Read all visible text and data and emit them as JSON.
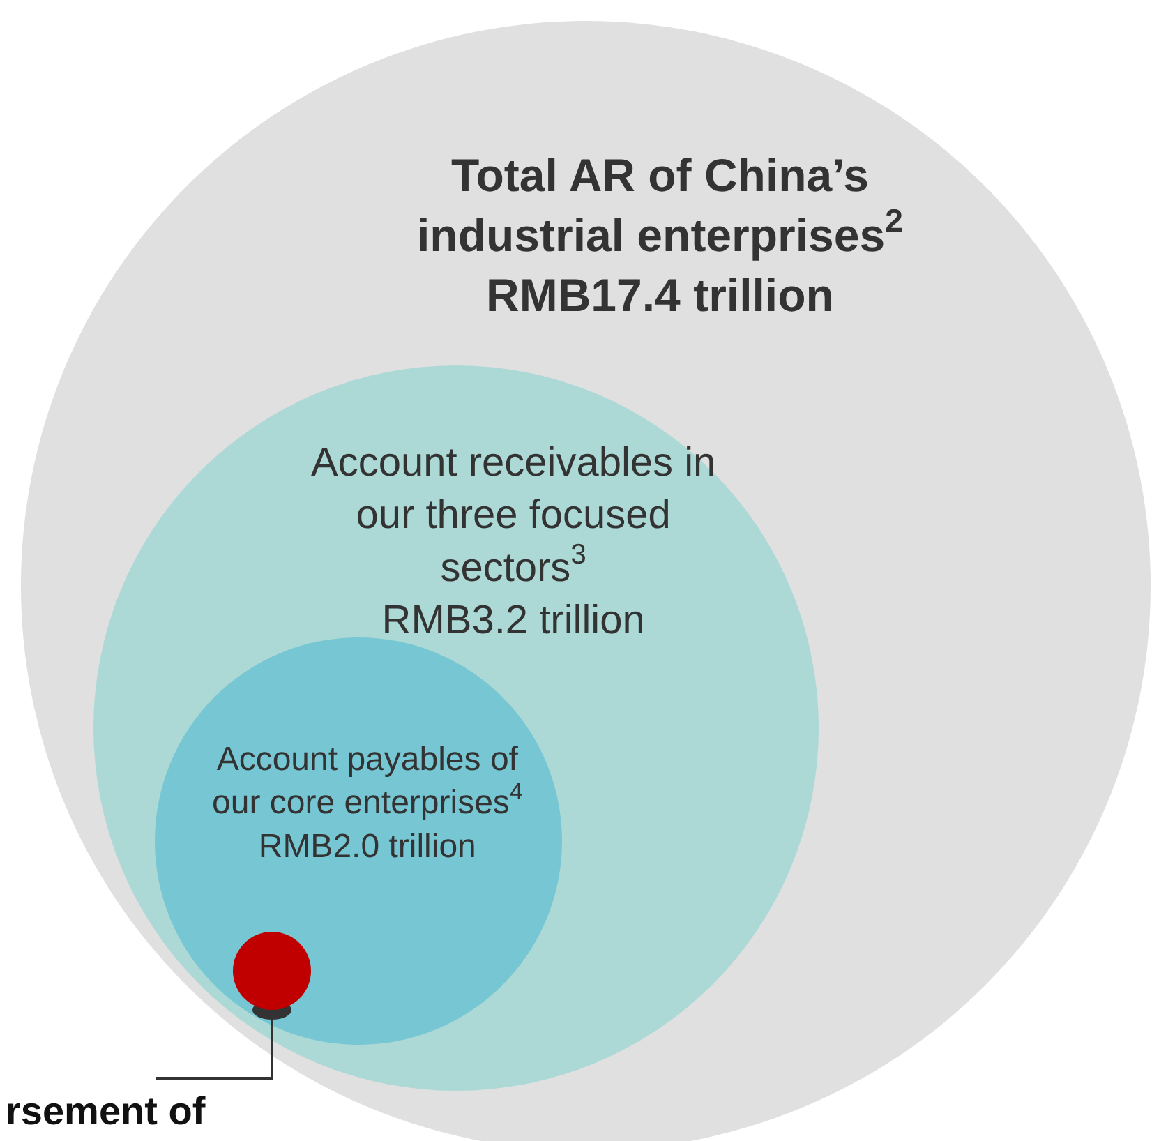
{
  "chart_data": {
    "type": "other",
    "categories": [
      "Total AR of China’s\nindustrial enterprises$^{2}$",
      "Account receivables in\nour three focused\nsectors$^{3}$",
      "Account payables of\nour core enterprises$^{4}$"
    ],
    "value_labels": [
      "RMB17.4 trillion",
      "RMB3.2 trillion",
      "RMB2.0 trillion"
    ],
    "values": [
      17.4,
      3.2,
      2.0
    ],
    "colors": [
      "#e0e0e0",
      "#acd9d6",
      "#77c6d3"
    ],
    "annotations": [
      "rsement of"
    ]
  }
}
